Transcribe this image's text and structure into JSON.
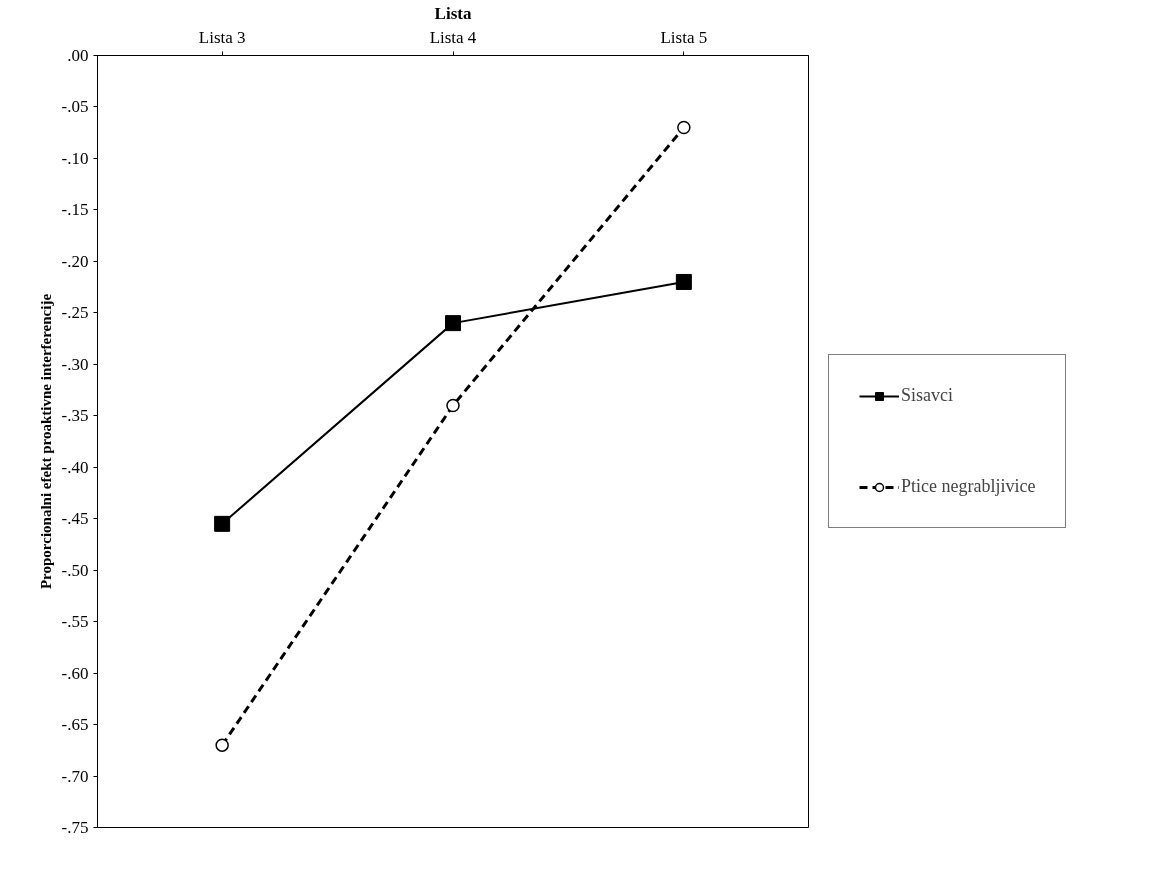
{
  "chart_data": {
    "type": "line",
    "xlabel": "Lista",
    "ylabel": "Proporcionalni efekt proaktivne interferencije",
    "categories": [
      "Lista 3",
      "Lista 4",
      "Lista 5"
    ],
    "series": [
      {
        "name": "Sisavci",
        "color": "#000000",
        "values": [
          -0.455,
          -0.26,
          -0.22
        ],
        "marker": "square",
        "line_style": "solid"
      },
      {
        "name": "Ptice negrabljivice",
        "color": "#000000",
        "values": [
          -0.67,
          -0.34,
          -0.07
        ],
        "marker": "circle",
        "line_style": "dashed"
      }
    ],
    "ylim": [
      -0.75,
      0.0
    ],
    "yticks": [
      {
        "value": 0.0,
        "label": ".00"
      },
      {
        "value": -0.05,
        "label": "-.05"
      },
      {
        "value": -0.1,
        "label": "-.10"
      },
      {
        "value": -0.15,
        "label": "-.15"
      },
      {
        "value": -0.2,
        "label": "-.20"
      },
      {
        "value": -0.25,
        "label": "-.25"
      },
      {
        "value": -0.3,
        "label": "-.30"
      },
      {
        "value": -0.35,
        "label": "-.35"
      },
      {
        "value": -0.4,
        "label": "-.40"
      },
      {
        "value": -0.45,
        "label": "-.45"
      },
      {
        "value": -0.5,
        "label": "-.50"
      },
      {
        "value": -0.55,
        "label": "-.55"
      },
      {
        "value": -0.6,
        "label": "-.60"
      },
      {
        "value": -0.65,
        "label": "-.65"
      },
      {
        "value": -0.7,
        "label": "-.70"
      },
      {
        "value": -0.75,
        "label": "-.75"
      }
    ],
    "grid": false,
    "legend": "right"
  }
}
